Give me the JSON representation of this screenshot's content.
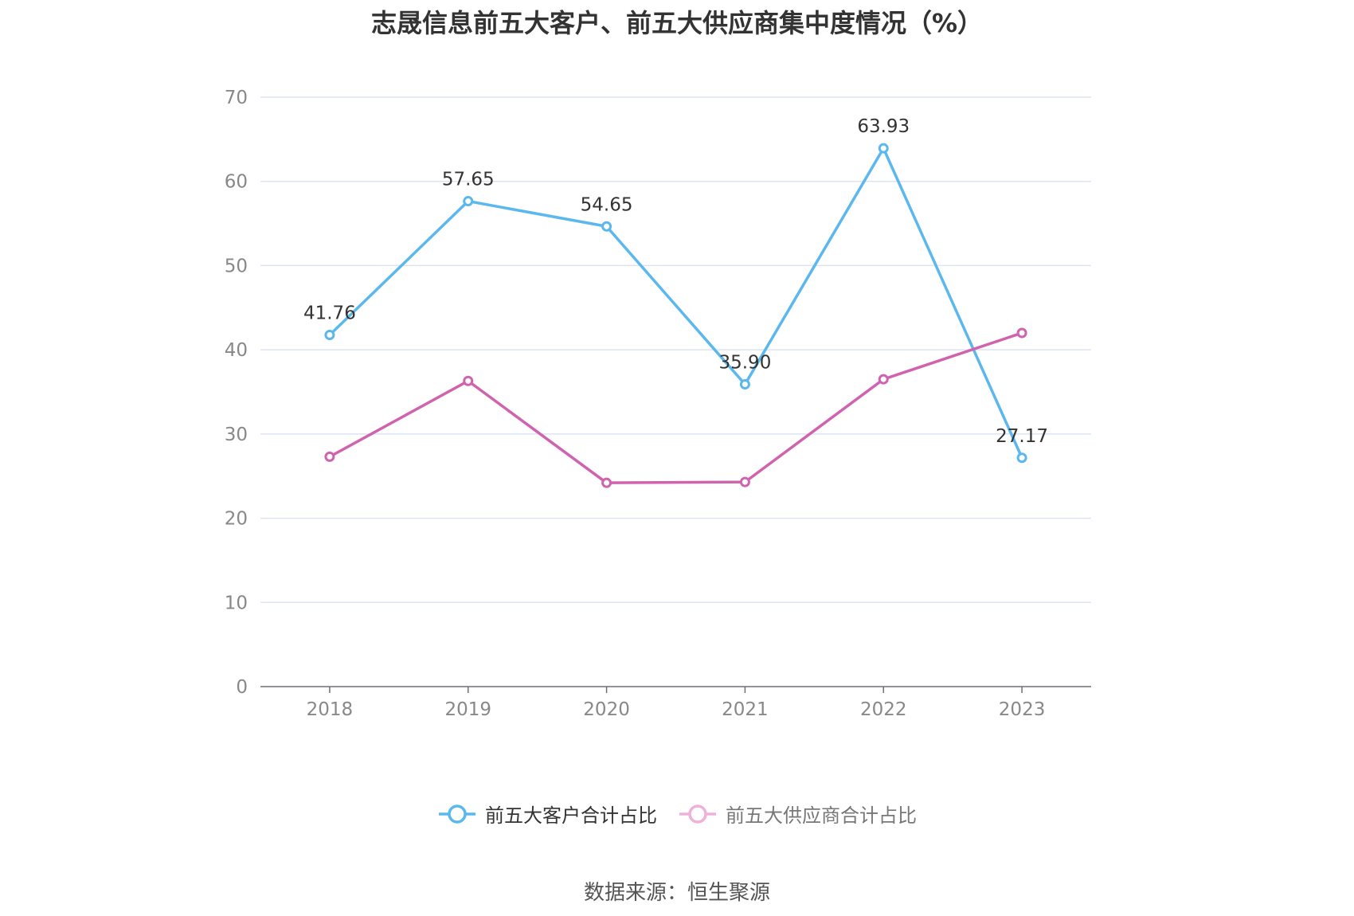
{
  "title": "志晟信息前五大客户、前五大供应商集中度情况（%）",
  "source": "数据来源：恒生聚源",
  "chart_data": {
    "type": "line",
    "categories": [
      "2018",
      "2019",
      "2020",
      "2021",
      "2022",
      "2023"
    ],
    "ylim": [
      0,
      70
    ],
    "yticks": [
      0,
      10,
      20,
      30,
      40,
      50,
      60,
      70
    ],
    "grid": true,
    "legend_position": "bottom",
    "series": [
      {
        "name": "前五大客户合计占比",
        "color": "#5ab8ee",
        "values": [
          41.76,
          57.65,
          54.65,
          35.9,
          63.93,
          27.17
        ],
        "labels": [
          "41.76",
          "57.65",
          "54.65",
          "35.90",
          "63.93",
          "27.17"
        ],
        "show_labels": true,
        "legend_color": "#333333"
      },
      {
        "name": "前五大供应商合计占比",
        "color": "#d063ae",
        "values": [
          27.3,
          36.3,
          24.2,
          24.3,
          36.5,
          42.0
        ],
        "show_labels": false,
        "legend_color": "#777777"
      }
    ]
  }
}
